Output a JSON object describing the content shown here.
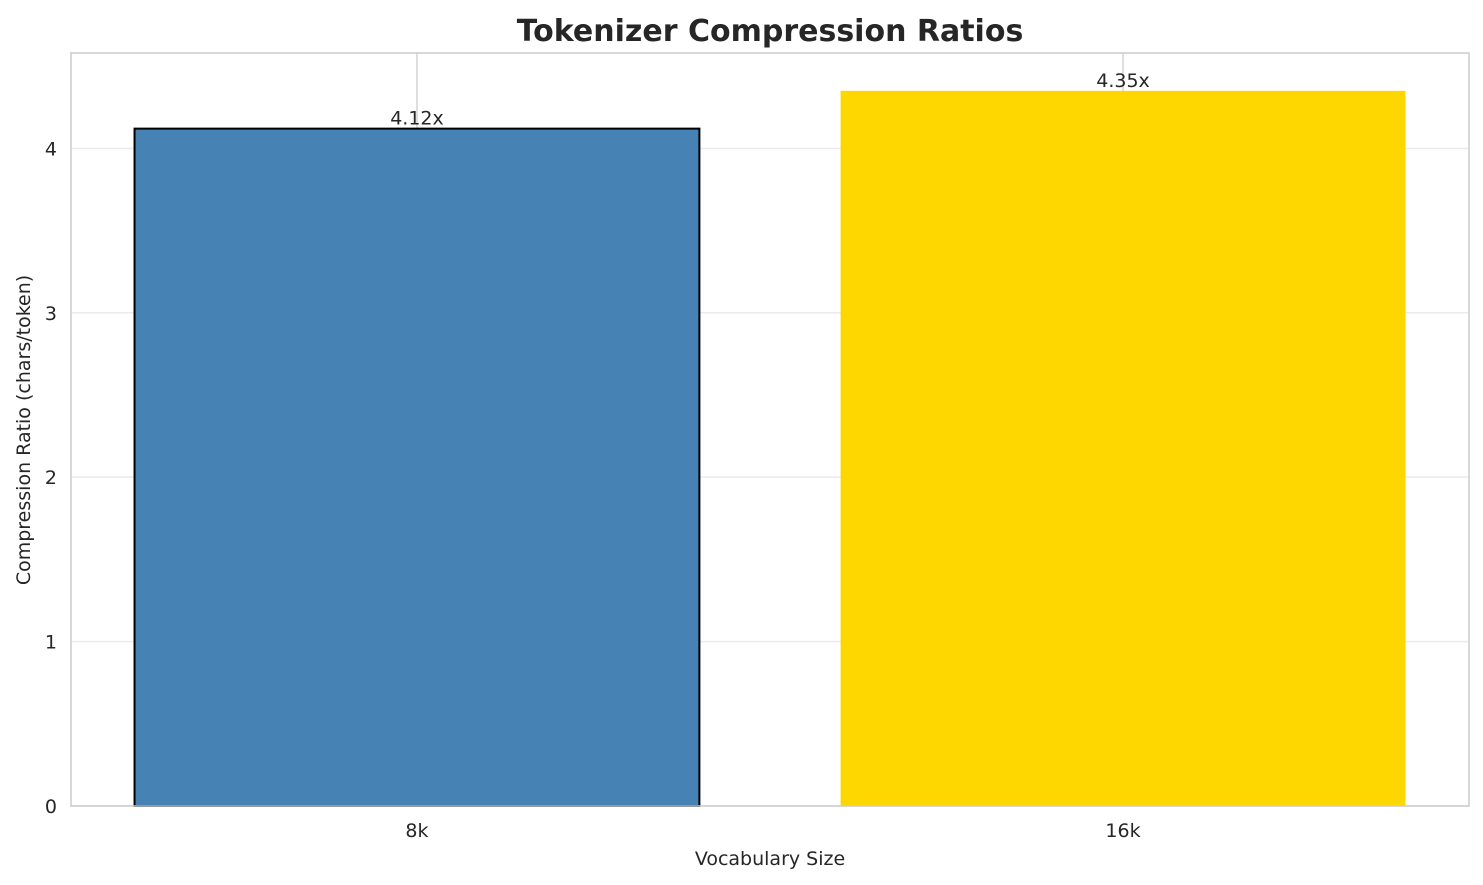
{
  "chart_data": {
    "type": "bar",
    "title": "Tokenizer Compression Ratios",
    "xlabel": "Vocabulary Size",
    "ylabel": "Compression Ratio (chars/token)",
    "categories": [
      "8k",
      "16k"
    ],
    "values": [
      4.12,
      4.35
    ],
    "data_labels": [
      "4.12x",
      "4.35x"
    ],
    "colors": [
      "#4682b4",
      "#ffd700"
    ],
    "edge_colors": [
      "#000000",
      "none"
    ],
    "yticks": [
      0,
      1,
      2,
      3,
      4
    ],
    "ylim": [
      0,
      4.58
    ],
    "grid": true,
    "legend": "none"
  }
}
